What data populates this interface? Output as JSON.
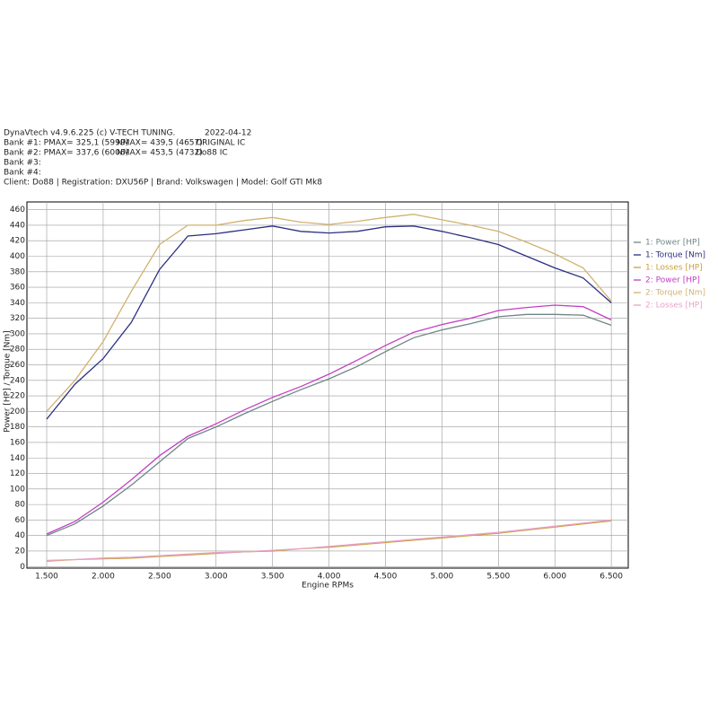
{
  "chart_data": {
    "type": "line",
    "header": {
      "program": "DynaVtech v4.9.6.225 (c) V-TECH TUNING.",
      "date": "2022-04-12",
      "banks": [
        [
          "Bank #1: PMAX= 325,1 (5999)",
          "NMAX= 439,5 (4657)",
          "ORIGINAL IC"
        ],
        [
          "Bank #2: PMAX= 337,6 (6006)",
          "NMAX= 453,5 (4732)",
          "Do88 IC"
        ],
        [
          "Bank #3:"
        ],
        [
          "Bank #4:"
        ]
      ],
      "client": "Client: Do88 | Registration: DXU56P | Brand: Volkswagen | Model: Golf GTI Mk8"
    },
    "x_label": "Engine RPMs",
    "y_label": "Power [HP] / Torque [Nm]",
    "xlim": [
      1325,
      6650
    ],
    "ylim": [
      -2,
      470
    ],
    "xticks": [
      {
        "value": 1500,
        "label": "1.500"
      },
      {
        "value": 2000,
        "label": "2.000"
      },
      {
        "value": 2500,
        "label": "2.500"
      },
      {
        "value": 3000,
        "label": "3.000"
      },
      {
        "value": 3500,
        "label": "3.500"
      },
      {
        "value": 4000,
        "label": "4.000"
      },
      {
        "value": 4500,
        "label": "4.500"
      },
      {
        "value": 5000,
        "label": "5.000"
      },
      {
        "value": 5500,
        "label": "5.500"
      },
      {
        "value": 6000,
        "label": "6.000"
      },
      {
        "value": 6500,
        "label": "6.500"
      }
    ],
    "yticks": [
      0,
      20,
      40,
      60,
      80,
      100,
      120,
      140,
      160,
      180,
      200,
      220,
      240,
      260,
      280,
      300,
      320,
      340,
      360,
      380,
      400,
      420,
      440,
      460
    ],
    "grid": true,
    "legend": "right",
    "x": [
      1500,
      1750,
      2000,
      2250,
      2500,
      2750,
      3000,
      3250,
      3500,
      3750,
      4000,
      4250,
      4500,
      4750,
      5000,
      5250,
      5500,
      5750,
      6000,
      6250,
      6500
    ],
    "series": [
      {
        "name": "1: Power [HP]",
        "color": "#6f8585",
        "values": [
          40,
          55,
          78,
          105,
          135,
          165,
          180,
          197,
          213,
          228,
          242,
          258,
          277,
          295,
          305,
          313,
          322,
          325,
          325,
          324,
          311
        ]
      },
      {
        "name": "1: Torque [Nm]",
        "color": "#2b2f80",
        "values": [
          190,
          235,
          268,
          315,
          383,
          426,
          429,
          434,
          439,
          432,
          430,
          432,
          438,
          439,
          432,
          424,
          415,
          400,
          385,
          372,
          340
        ]
      },
      {
        "name": "1: Losses [HP]",
        "color": "#c9a13c",
        "values": [
          7,
          9,
          10,
          11,
          13,
          15,
          17,
          19,
          20,
          23,
          25,
          28,
          31,
          34,
          37,
          40,
          43,
          47,
          51,
          55,
          59
        ]
      },
      {
        "name": "2: Power [HP]",
        "color": "#c43ec4",
        "values": [
          42,
          58,
          83,
          112,
          143,
          168,
          184,
          202,
          218,
          232,
          248,
          266,
          285,
          302,
          312,
          320,
          330,
          334,
          337,
          335,
          318
        ]
      },
      {
        "name": "2: Torque [Nm]",
        "color": "#d2b26e",
        "values": [
          200,
          240,
          290,
          355,
          415,
          440,
          440,
          446,
          450,
          444,
          441,
          445,
          450,
          454,
          447,
          440,
          432,
          418,
          403,
          385,
          342
        ]
      },
      {
        "name": "2: Losses [HP]",
        "color": "#e9a2c9",
        "values": [
          8,
          9,
          11,
          12,
          14,
          16,
          18,
          19,
          21,
          23,
          26,
          29,
          32,
          35,
          38,
          41,
          44,
          48,
          52,
          56,
          60
        ]
      }
    ]
  }
}
